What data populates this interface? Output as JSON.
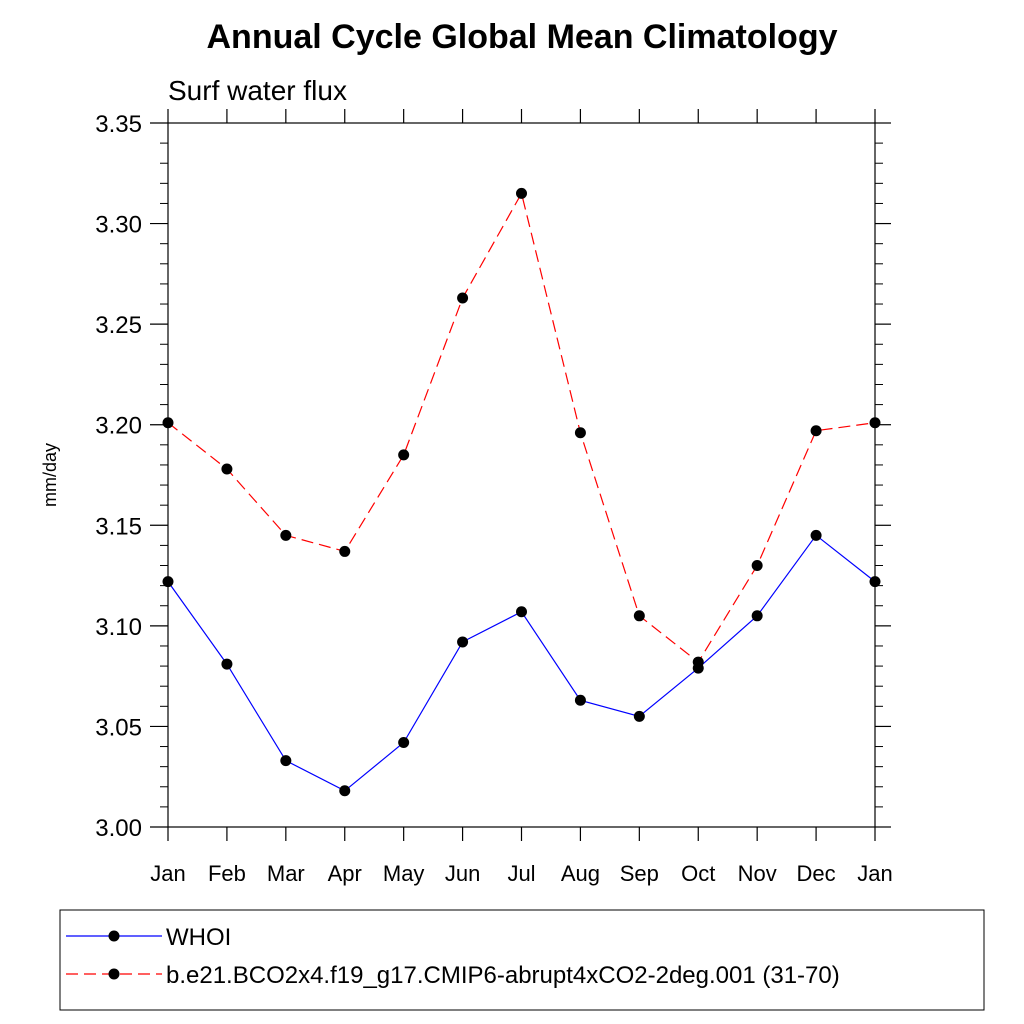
{
  "chart_data": {
    "type": "line",
    "title": "Annual Cycle Global Mean Climatology",
    "subtitle": "Surf water flux",
    "xlabel": "",
    "ylabel": "mm/day",
    "categories": [
      "Jan",
      "Feb",
      "Mar",
      "Apr",
      "May",
      "Jun",
      "Jul",
      "Aug",
      "Sep",
      "Oct",
      "Nov",
      "Dec",
      "Jan"
    ],
    "ylim": [
      3.0,
      3.35
    ],
    "yticks": [
      "3.00",
      "3.05",
      "3.10",
      "3.15",
      "3.20",
      "3.25",
      "3.30",
      "3.35"
    ],
    "grid": false,
    "legend_position": "bottom",
    "series": [
      {
        "name": "WHOI",
        "color": "#0000ff",
        "dash": "solid",
        "values": [
          3.122,
          3.081,
          3.033,
          3.018,
          3.042,
          3.092,
          3.107,
          3.063,
          3.055,
          3.079,
          3.105,
          3.145,
          3.122
        ]
      },
      {
        "name": "b.e21.BCO2x4.f19_g17.CMIP6-abrupt4xCO2-2deg.001 (31-70)",
        "color": "#ff0000",
        "dash": "dashed",
        "values": [
          3.201,
          3.178,
          3.145,
          3.137,
          3.185,
          3.263,
          3.315,
          3.196,
          3.105,
          3.082,
          3.13,
          3.197,
          3.201
        ]
      }
    ]
  }
}
